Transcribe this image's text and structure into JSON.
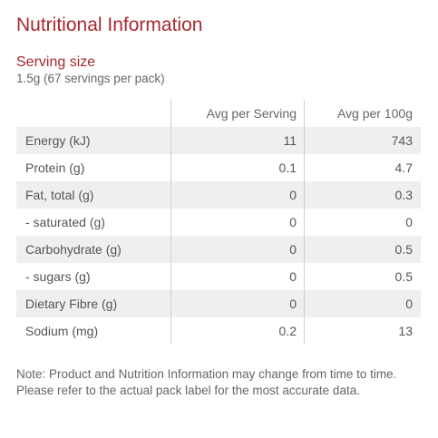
{
  "title": "Nutritional Information",
  "serving": {
    "label": "Serving size",
    "value": "1.5g (67 servings per pack)"
  },
  "table": {
    "headers": [
      "",
      "Avg per Serving",
      "Avg per 100g"
    ],
    "rows": [
      {
        "name": "Energy (kJ)",
        "per_serving": "11",
        "per_100g": "743"
      },
      {
        "name": "Protein (g)",
        "per_serving": "0.1",
        "per_100g": "4.7"
      },
      {
        "name": "Fat, total (g)",
        "per_serving": "0",
        "per_100g": "0.3"
      },
      {
        "name": "- saturated (g)",
        "per_serving": "0",
        "per_100g": "0"
      },
      {
        "name": "Carbohydrate (g)",
        "per_serving": "0",
        "per_100g": "0.5"
      },
      {
        "name": "- sugars (g)",
        "per_serving": "0",
        "per_100g": "0.5"
      },
      {
        "name": "Dietary Fibre (g)",
        "per_serving": "0",
        "per_100g": "0"
      },
      {
        "name": "Sodium (mg)",
        "per_serving": "0.2",
        "per_100g": "13"
      }
    ]
  },
  "note": "Note: Product and Nutrition Information may change from time to time. Please refer to the actual pack label for the most accurate data.",
  "colors": {
    "accent": "#a8282f",
    "row_shade": "#efefef"
  }
}
